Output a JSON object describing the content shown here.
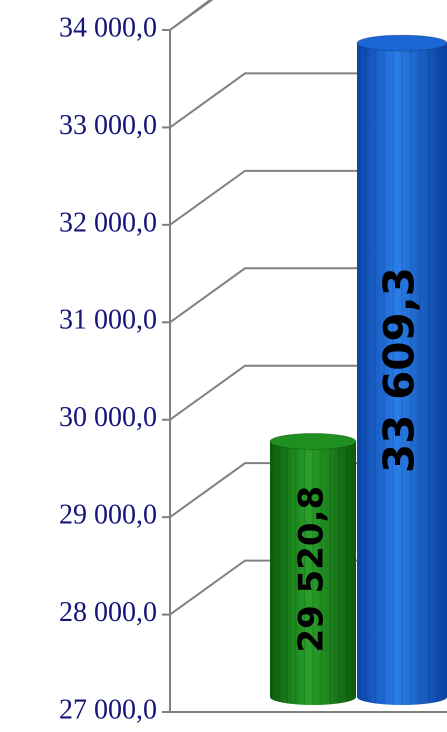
{
  "chart_data": {
    "type": "bar3d",
    "categories": [
      null,
      null
    ],
    "values": [
      29520.8,
      33609.3
    ],
    "value_labels": [
      "29 520,8",
      "33 609,3"
    ],
    "colors": [
      "#1f8f1f",
      "#1a66d6"
    ],
    "ylim": [
      27000,
      34000
    ],
    "yticks": [
      {
        "value": 27000,
        "label": "27 000,0"
      },
      {
        "value": 28000,
        "label": "28 000,0"
      },
      {
        "value": 29000,
        "label": "29 000,0"
      },
      {
        "value": 30000,
        "label": "30 000,0"
      },
      {
        "value": 31000,
        "label": "31 000,0"
      },
      {
        "value": 32000,
        "label": "32 000,0"
      },
      {
        "value": 33000,
        "label": "33 000,0"
      },
      {
        "value": 34000,
        "label": "34 000,0"
      }
    ],
    "grid": true
  }
}
